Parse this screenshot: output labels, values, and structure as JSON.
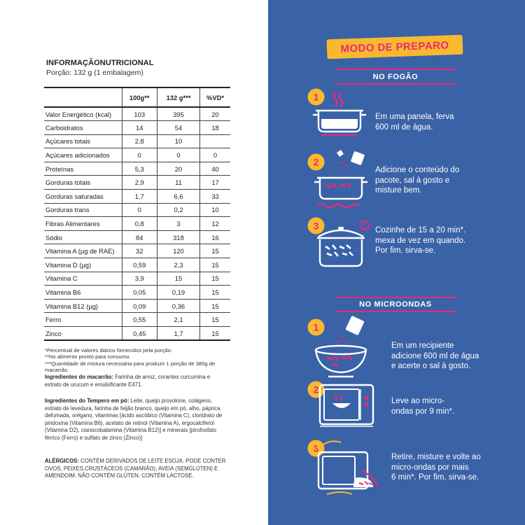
{
  "nutrition": {
    "title": "INFORMAÇÃONUTRICIONAL",
    "portion": "Porção: 132 g (1 embalagem)",
    "headers": [
      "",
      "100g**",
      "132 g***",
      "%VD*"
    ],
    "rows": [
      [
        "Valor Energético (kcal)",
        "103",
        "395",
        "20"
      ],
      [
        "Carboidratos",
        "14",
        "54",
        "18"
      ],
      [
        "Açúcares totais",
        "2,8",
        "10",
        ""
      ],
      [
        "Açúcares adicionados",
        "0",
        "0",
        "0"
      ],
      [
        "Proteínas",
        "5,3",
        "20",
        "40"
      ],
      [
        "Gorduras totais",
        "2,9",
        "11",
        "17"
      ],
      [
        "Gorduras saturadas",
        "1,7",
        "6,6",
        "33"
      ],
      [
        "Gorduras trans",
        "0",
        "0,2",
        "10"
      ],
      [
        "Fibras Alimentares",
        "0,8",
        "3",
        "12"
      ],
      [
        "Sódio",
        "84",
        "318",
        "16"
      ],
      [
        "Vitamina A (µg de RAE)",
        "32",
        "120",
        "15"
      ],
      [
        "Vitamina D (µg)",
        "0,59",
        "2,3",
        "15"
      ],
      [
        "Vitamina C",
        "3,9",
        "15",
        "15"
      ],
      [
        "Vitamina B6",
        "0,05",
        "0,19",
        "15"
      ],
      [
        "Vitamina B12 (µg)",
        "0,09",
        "0,36",
        "15"
      ],
      [
        "Ferro",
        "0,55",
        "2,1",
        "15"
      ],
      [
        "Zinco",
        "0,45",
        "1,7",
        "15"
      ]
    ],
    "footnotes": [
      "*Percentual de valores diários fornecidos pela porção.",
      "**No alimento pronto para consumo.",
      "***Quantidade de mistura necessária para produzir 1 porção de 380g de macarrão."
    ]
  },
  "ingredients_pasta": {
    "label": "Ingredientes do macarrão:",
    "text": " Farinha de arroz, corantes curcumina e extrato de urucum e emulsificante E471."
  },
  "ingredients_seasoning": {
    "label": "Ingredientes do Tempero em pó:",
    "text": " Leite, queijo provolone, colágeno, extrato de levedura, farinha de feijão branco, queijo em pó, alho, páprica defumada, orégano, vitaminas [ácido ascóbico (Vitamina C), cloridrato de piridoxina (Vitamina B6), acetato de retinol (Vitamina A), ergocalciferol (Vitamina D2), cianocobalamina (Vitamina B12)] e minerais [pirofosfato férrico (Ferro) e sulfato de zinco (Zinco)]"
  },
  "allergens": {
    "label": "ALÉRGICOS:",
    "text": " CONTÉM DERIVADOS DE LEITE ESOJA. PODE CONTER OVOS, PEIXES,CRUSTÁCEOS (CAMARÃO), AVEIA (SEMGLÚTEN) E AMENDOIM. NÃO CONTÉM GLÚTEN. CONTÉM LACTOSE."
  },
  "preparation": {
    "title": "MODO DE PREPARO",
    "stove": {
      "label": "NO FOGÃO",
      "steps": [
        {
          "num": "1",
          "lines": [
            "Em uma panela, ferva",
            "600 ml de água."
          ]
        },
        {
          "num": "2",
          "lines": [
            "Adicione o conteúdo do",
            "pacote, sal à gosto e",
            "misture bem."
          ]
        },
        {
          "num": "3",
          "lines": [
            "Cozinhe de 15 a 20 min*.",
            "mexa de vez em quando.",
            "Por fim, sirva-se."
          ]
        }
      ]
    },
    "microwave": {
      "label": "NO MICROONDAS",
      "steps": [
        {
          "num": "1",
          "lines": [
            "Em um recipiente",
            "adicione 600 ml de água",
            "e acerte o sal à gosto."
          ]
        },
        {
          "num": "2",
          "lines": [
            "Leve ao micro-",
            "ondas por 9 min*."
          ]
        },
        {
          "num": "3",
          "lines": [
            "Retire, misture e volte ao",
            "micro-ondas por mais",
            "6 min*. Por fim, sirva-se."
          ]
        }
      ]
    }
  },
  "colors": {
    "panel_blue": "#3a62a6",
    "accent_pink": "#e8297a",
    "accent_yellow": "#f8b92e"
  }
}
